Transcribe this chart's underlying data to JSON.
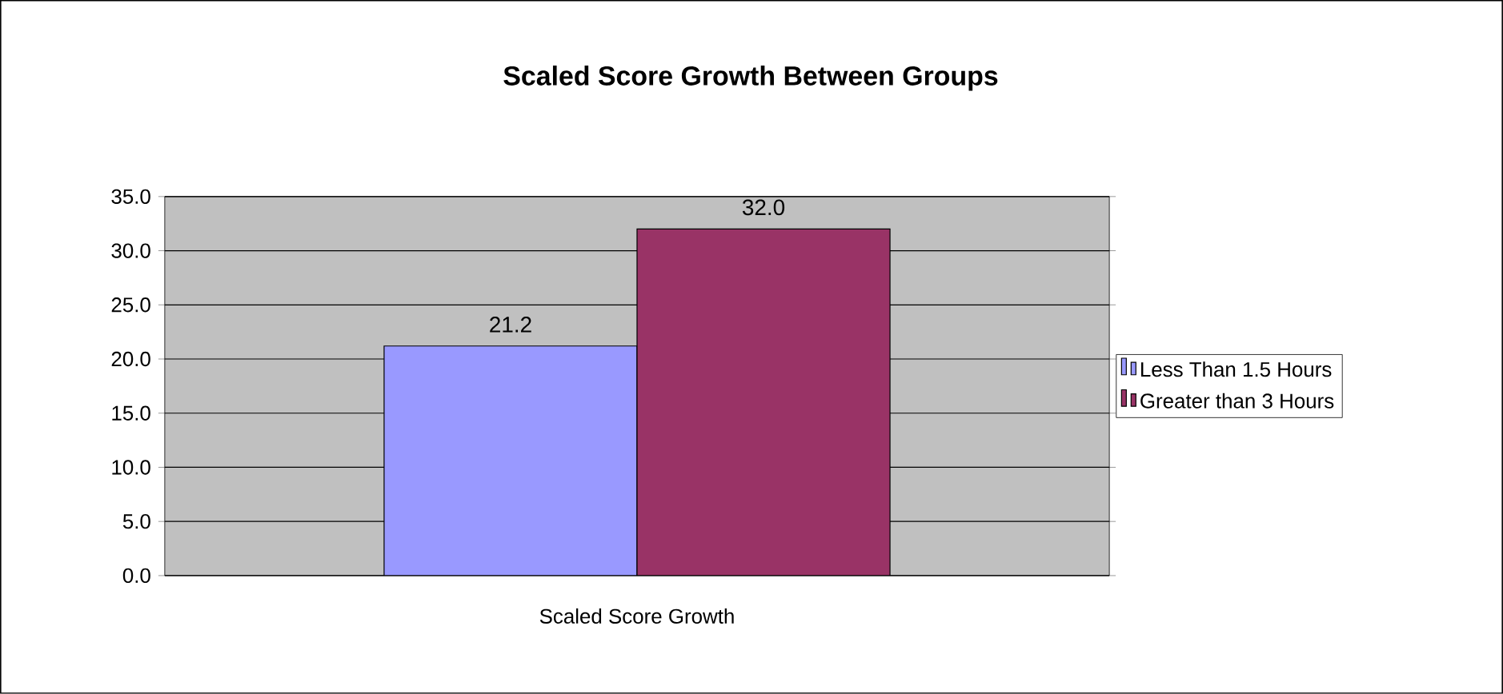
{
  "chart_data": {
    "type": "bar",
    "title": "Scaled Score Growth Between Groups",
    "categories": [
      "Scaled Score Growth"
    ],
    "series": [
      {
        "name": "Less Than 1.5 Hours",
        "color": "#9999ff",
        "values": [
          21.2
        ],
        "value_labels": [
          "21.2"
        ]
      },
      {
        "name": "Greater than 3 Hours",
        "color": "#993366",
        "values": [
          32.0
        ],
        "value_labels": [
          "32.0"
        ]
      }
    ],
    "ylim": [
      0,
      35
    ],
    "yticks": [
      {
        "value": 0,
        "label": "0.0"
      },
      {
        "value": 5,
        "label": "5.0"
      },
      {
        "value": 10,
        "label": "10.0"
      },
      {
        "value": 15,
        "label": "15.0"
      },
      {
        "value": 20,
        "label": "20.0"
      },
      {
        "value": 25,
        "label": "25.0"
      },
      {
        "value": 30,
        "label": "30.0"
      },
      {
        "value": 35,
        "label": "35.0"
      }
    ],
    "grid": "y",
    "legend": "right"
  }
}
